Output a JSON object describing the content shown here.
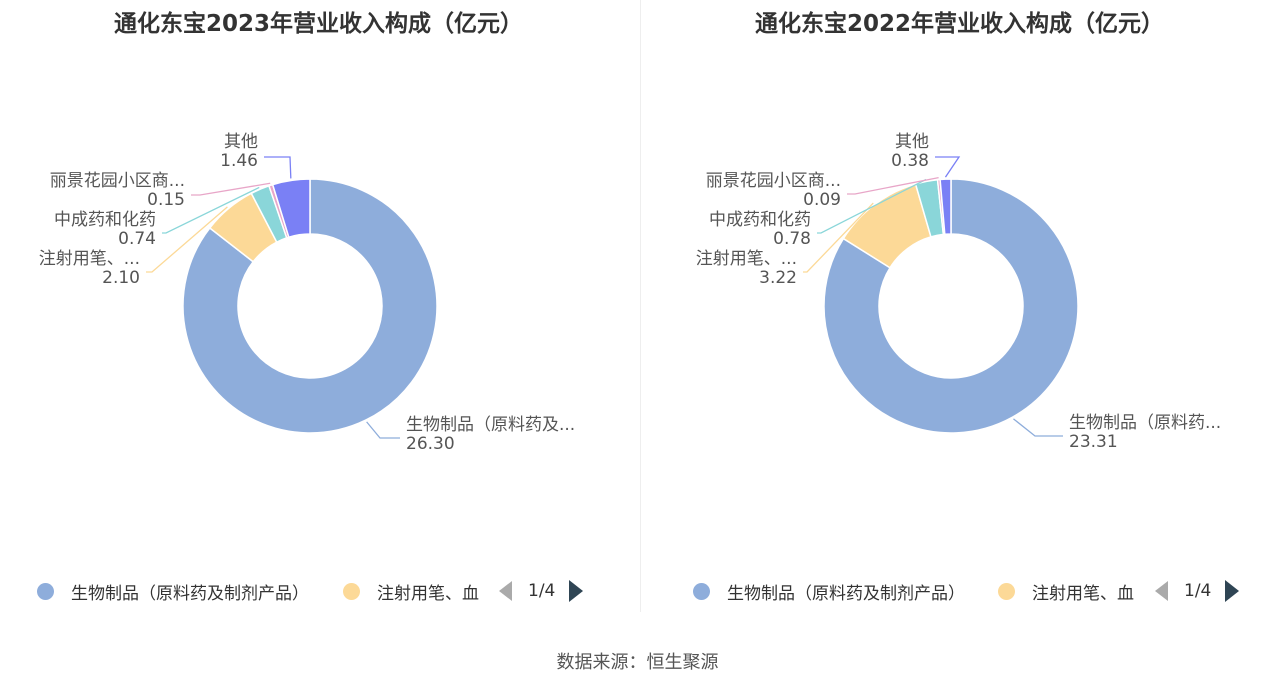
{
  "charts": [
    {
      "title": "通化东宝2023年营业收入构成（亿元）",
      "legend": {
        "items": [
          {
            "label": "生物制品（原料药及制剂产品）",
            "color": "#8eaddb"
          },
          {
            "label": "注射用笔、血",
            "color": "#fcd997"
          }
        ],
        "page_text": "1/4"
      }
    },
    {
      "title": "通化东宝2022年营业收入构成（亿元）",
      "legend": {
        "items": [
          {
            "label": "生物制品（原料药及制剂产品）",
            "color": "#8eaddb"
          },
          {
            "label": "注射用笔、血",
            "color": "#fcd997"
          }
        ],
        "page_text": "1/4"
      }
    }
  ],
  "chart_data": [
    {
      "type": "pie",
      "donut": true,
      "title": "通化东宝2023年营业收入构成（亿元）",
      "unit": "亿元",
      "slices": [
        {
          "label": "生物制品（原料药及...",
          "value": 26.3,
          "value_text": "26.30",
          "color": "#8eaddb"
        },
        {
          "label": "注射用笔、...",
          "value": 2.1,
          "value_text": "2.10",
          "color": "#fcd997"
        },
        {
          "label": "中成药和化药",
          "value": 0.74,
          "value_text": "0.74",
          "color": "#8ad6d9"
        },
        {
          "label": "丽景花园小区商...",
          "value": 0.15,
          "value_text": "0.15",
          "color": "#e8a6c8"
        },
        {
          "label": "其他",
          "value": 1.46,
          "value_text": "1.46",
          "color": "#7a80f5"
        }
      ]
    },
    {
      "type": "pie",
      "donut": true,
      "title": "通化东宝2022年营业收入构成（亿元）",
      "unit": "亿元",
      "slices": [
        {
          "label": "生物制品（原料药...",
          "value": 23.31,
          "value_text": "23.31",
          "color": "#8eaddb"
        },
        {
          "label": "注射用笔、...",
          "value": 3.22,
          "value_text": "3.22",
          "color": "#fcd997"
        },
        {
          "label": "中成药和化药",
          "value": 0.78,
          "value_text": "0.78",
          "color": "#8ad6d9"
        },
        {
          "label": "丽景花园小区商...",
          "value": 0.09,
          "value_text": "0.09",
          "color": "#e8a6c8"
        },
        {
          "label": "其他",
          "value": 0.38,
          "value_text": "0.38",
          "color": "#7a80f5"
        }
      ]
    }
  ],
  "footer": {
    "source": "数据来源：恒生聚源"
  }
}
